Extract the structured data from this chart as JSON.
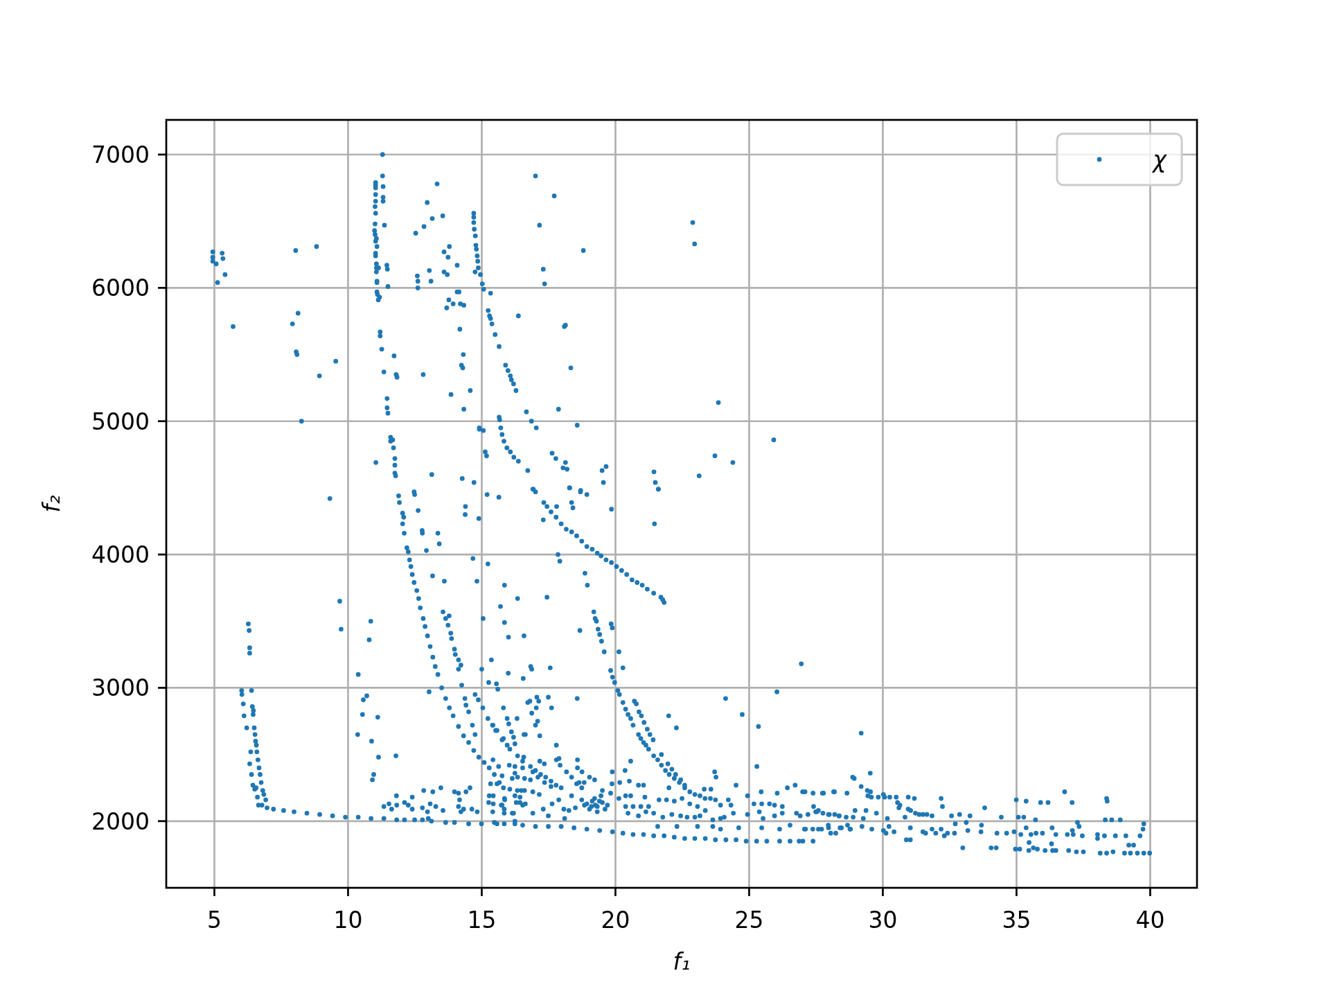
{
  "chart_data": {
    "type": "scatter",
    "xlabel": "f₁",
    "ylabel": "f₂",
    "xlim": [
      3.2,
      41.75
    ],
    "ylim": [
      1500,
      7260
    ],
    "xticks": [
      5,
      10,
      15,
      20,
      25,
      30,
      35,
      40
    ],
    "yticks": [
      2000,
      3000,
      4000,
      5000,
      6000,
      7000
    ],
    "grid": true,
    "legend": "top right",
    "marker": "circle",
    "x": [
      4.94,
      4.94,
      4.94,
      5.07,
      5.29,
      5.32,
      5.4,
      5.12,
      8.04,
      8.82,
      11.29,
      11.29,
      11.03,
      11.03,
      11.03,
      11.31,
      11.31,
      11.31,
      11.36,
      11.03,
      11.03,
      11.01,
      11.03,
      11.01,
      10.99,
      11.01,
      11.06,
      11.03,
      11.08,
      11.03,
      11.03,
      11.06,
      11.06,
      11.14,
      11.06,
      11.08,
      11.08,
      11.49,
      11.08,
      11.1,
      11.18,
      11.13,
      11.45,
      11.47,
      13.33,
      12.96,
      13.15,
      13.54,
      12.84,
      12.53,
      13.79,
      13.59,
      13.74,
      14.08,
      13.04,
      13.59,
      13.71,
      12.59,
      12.61,
      12.61,
      13.1,
      14.7,
      14.7,
      14.7,
      14.72,
      14.76,
      14.78,
      14.8,
      14.83,
      14.85,
      14.87,
      14.95,
      14.75,
      15.02,
      15.07,
      15.33,
      15.24,
      15.29,
      15.33,
      15.38,
      15.5,
      15.65,
      15.89,
      15.98,
      16.07,
      16.11,
      16.19,
      16.28,
      16.37,
      14.08,
      14.15,
      13.77,
      13.93,
      13.69,
      14.2,
      14.33,
      14.18,
      14.31,
      14.24,
      14.29,
      13.85,
      14.57,
      14.33,
      14.91,
      14.91,
      15.06,
      15.13,
      15.18,
      14.27,
      14.71,
      13.13,
      12.47,
      11.2,
      11.2,
      11.26,
      11.72,
      11.34,
      11.8,
      11.83,
      11.46,
      11.46,
      11.49,
      11.59,
      11.67,
      11.59,
      11.7,
      11.75,
      11.75,
      11.75,
      11.78,
      11.04,
      12.81,
      8.13,
      7.92,
      5.7,
      8.06,
      8.09,
      9.54,
      8.93,
      8.26,
      15.65,
      15.67,
      15.71,
      15.76,
      15.83,
      15.94,
      16.07,
      16.2,
      16.37,
      17.01,
      17.71,
      17.16,
      18.8,
      17.3,
      17.35,
      22.89,
      22.96,
      18.13,
      18.09,
      18.33,
      23.85,
      25.92,
      16.67,
      16.86,
      17.04,
      17.87,
      18.57,
      17.63,
      17.77,
      18.13,
      18.04,
      18.19,
      16.72,
      19.5,
      19.65,
      19.55,
      18.28,
      18.7,
      16.93,
      21.44,
      21.49,
      21.6,
      23.13,
      23.72,
      24.39,
      9.32,
      11.89,
      12.49,
      12.62,
      11.92,
      12.04,
      12.08,
      12.04,
      12.1,
      12.2,
      12.25,
      12.77,
      12.78,
      13.36,
      13.41,
      12.93,
      14.39,
      14.38,
      14.89,
      15.2,
      15.64,
      14.67,
      15.23,
      14.82,
      13.16,
      13.6,
      15.85,
      16.34,
      15.7,
      15.05,
      15.85,
      16.0,
      16.58,
      15.36,
      15.0,
      15.99,
      16.55,
      15.26,
      15.55,
      15.6,
      13.03,
      12.3,
      12.35,
      12.4,
      12.47,
      12.57,
      12.64,
      12.7,
      12.81,
      12.88,
      12.97,
      13.07,
      13.17,
      13.26,
      13.36,
      13.5,
      13.65,
      13.79,
      13.93,
      14.13,
      14.32,
      14.51,
      14.7,
      14.89,
      15.09,
      15.28,
      15.47,
      15.66,
      15.81,
      16.05,
      16.33,
      16.6,
      15.76,
      16.14,
      16.6,
      13.55,
      13.65,
      13.74,
      13.84,
      13.87,
      13.98,
      14.01,
      14.13,
      14.22,
      14.13,
      14.25,
      14.37,
      14.41,
      14.51,
      14.65,
      14.75,
      13.78,
      14.75,
      14.87,
      15.04,
      15.23,
      15.42,
      15.57,
      15.76,
      15.95,
      16.24,
      16.34,
      16.53,
      15.81,
      15.95,
      16.01,
      16.32,
      16.11,
      16.19,
      16.58,
      15.42,
      15.63,
      16.03,
      16.24,
      16.53,
      15.57,
      15.33,
      15.28,
      15.43,
      15.26,
      15.43,
      15.76,
      15.85,
      15.41,
      15.84,
      15.84,
      16.19,
      16.24,
      16.43,
      16.53,
      16.29,
      15.57,
      15.84,
      16.24,
      16.53,
      6.27,
      6.3,
      6.32,
      6.32,
      6.02,
      6.03,
      6.39,
      6.08,
      6.42,
      6.46,
      6.45,
      6.11,
      6.21,
      6.49,
      6.52,
      6.54,
      6.57,
      6.36,
      6.59,
      6.32,
      6.63,
      6.67,
      6.39,
      6.71,
      6.44,
      6.51,
      6.75,
      6.56,
      6.81,
      6.85,
      6.61,
      6.92,
      6.65,
      6.78,
      6.97,
      7.21,
      7.59,
      7.98,
      8.46,
      8.94,
      9.42,
      9.9,
      10.38,
      10.86,
      11.34,
      11.82,
      12.11,
      12.49,
      12.78,
      13.12,
      13.65,
      13.98,
      14.51,
      14.99,
      9.69,
      9.74,
      10.85,
      10.79,
      10.38,
      10.7,
      10.57,
      10.54,
      11.11,
      10.36,
      10.88,
      11.14,
      11.79,
      10.96,
      10.91,
      11.34,
      11.53,
      11.82,
      11.81,
      12.11,
      12.4,
      12.4,
      11.63,
      12.25,
      12.83,
      13.17,
      13.47,
      12.78,
      13.07,
      13.28,
      12.97,
      13.55,
      13.98,
      14.13,
      14.17,
      14.13,
      14.22,
      14.32,
      14.41,
      14.56,
      14.63,
      14.83,
      13.0,
      16.91,
      17.01,
      17.32,
      17.44,
      17.59,
      17.78,
      17.97,
      18.16,
      18.36,
      18.55,
      18.74,
      18.93,
      19.13,
      19.32,
      19.46,
      19.65,
      19.85,
      20.04,
      20.23,
      20.42,
      20.62,
      20.81,
      21.0,
      21.19,
      21.43,
      21.7,
      21.77,
      21.82,
      17.3,
      17.8,
      18.29,
      18.36,
      18.41,
      18.69,
      18.93,
      19.85,
      21.61,
      21.46,
      17.85,
      17.92,
      18.86,
      18.95,
      17.44,
      16.83,
      16.87,
      17.56,
      18.67,
      19.19,
      19.24,
      19.29,
      19.35,
      19.41,
      19.48,
      19.58,
      19.82,
      19.89,
      19.97,
      20.09,
      20.15,
      20.28,
      20.38,
      20.47,
      20.57,
      20.66,
      20.86,
      20.95,
      21.05,
      21.14,
      21.24,
      21.43,
      21.58,
      21.72,
      21.87,
      22.01,
      22.2,
      22.39,
      22.59,
      22.78,
      22.97,
      23.16,
      23.35,
      23.55,
      23.74,
      20.71,
      20.78,
      20.88,
      20.97,
      21.07,
      21.19,
      21.29,
      21.41,
      21.72,
      21.96,
      22.11,
      22.25,
      22.44,
      22.59,
      19.84,
      19.88,
      20.13,
      20.28,
      21.99,
      22.28,
      24.12,
      24.74,
      25.35,
      26.04,
      26.95,
      25.29,
      23.71,
      23.76,
      24.51,
      23.32,
      23.57,
      22.0,
      20.57,
      20.36,
      19.88,
      18.57,
      17.61,
      17.49,
      17.06,
      17.13,
      16.8,
      16.72,
      17.04,
      16.87,
      17.09,
      17.01,
      16.63,
      17.17,
      17.79,
      15.52,
      15.4,
      15.81,
      16.05,
      16.82,
      17.01,
      17.2,
      17.39,
      17.59,
      17.78,
      17.97,
      16.91,
      17.1,
      17.35,
      17.59,
      17.79,
      17.93,
      18.17,
      18.36,
      18.55,
      18.74,
      18.83,
      19.03,
      19.22,
      16.34,
      16.82,
      18.74,
      18.93,
      19.13,
      19.32,
      19.51,
      19.51,
      19.61,
      19.03,
      19.32,
      19.22,
      19.46,
      18.84,
      19.7,
      19.25,
      19.4,
      19.1,
      20.13,
      20.38,
      20.66,
      20.95,
      21.24,
      21.63,
      21.91,
      22.2,
      22.49,
      22.78,
      23.07,
      23.36,
      23.93,
      24.22,
      24.32,
      24.41,
      24.94,
      25.18,
      25.47,
      25.76,
      25.95,
      26.24,
      26.43,
      26.72,
      27.0,
      27.39,
      27.78,
      28.16,
      26.05,
      25.45,
      20.47,
      20.86,
      21.14,
      21.43,
      21.77,
      22.11,
      22.44,
      22.68,
      22.97,
      23.16,
      23.64,
      23.93,
      24.07,
      24.94,
      25.38,
      25.52,
      25.95,
      26.24,
      26.77,
      26.91,
      27.2,
      27.49,
      27.59,
      27.97,
      28.36,
      21.58,
      22.3,
      23.07,
      23.64,
      23.93,
      24.61,
      25.47,
      26.14,
      26.53,
      27.11,
      27.59,
      27.97,
      28.45,
      15.47,
      16.24,
      17.01,
      17.49,
      17.97,
      18.45,
      18.93,
      19.41,
      19.89,
      20.28,
      20.66,
      21.05,
      21.43,
      21.82,
      22.2,
      22.59,
      22.97,
      23.36,
      23.74,
      24.13,
      24.51,
      24.89,
      25.28,
      25.66,
      26.14,
      26.53,
      27.01,
      27.39,
      16.14,
      16.43,
      16.63,
      16.91,
      17.3,
      17.49,
      17.63,
      17.88,
      18.07,
      18.26,
      18.36,
      18.5,
      18.64,
      18.58,
      18.58,
      18.75,
      18.1,
      17.15,
      16.91,
      16.48,
      15.86,
      15.73,
      16.57,
      17.17,
      17.34,
      17.89,
      19.87,
      20.16,
      20.52,
      20.86,
      21.05,
      19.82,
      20.38,
      20.57,
      21.1,
      16.24,
      29.19,
      29.53,
      28.87,
      28.93,
      29.19,
      29.42,
      29.54,
      29.44,
      29.57,
      29.83,
      30.02,
      30.07,
      30.26,
      30.5,
      30.55,
      30.64,
      30.6,
      30.95,
      31.18,
      30.95,
      31.04,
      31.22,
      31.36,
      31.5,
      31.65,
      31.84,
      30.83,
      32.18,
      32.23,
      32.57,
      32.87,
      33.26,
      33.81,
      32.71,
      33.12,
      33.69,
      34.43,
      34.99,
      35.36,
      35.9,
      36.18,
      36.8,
      37.08,
      38.37,
      38.39,
      35.07,
      35.27,
      35.71,
      38.32,
      38.56,
      38.88,
      37.28,
      37.34,
      27.07,
      27.38,
      27.71,
      27.96,
      28.05,
      28.24,
      28.4,
      28.77,
      29.22,
      29.59,
      30.02,
      30.12,
      30.23,
      30.42,
      31.03,
      31.5,
      31.6,
      31.84,
      31.98,
      32.18,
      32.3,
      32.42,
      32.68,
      33.18,
      33.67,
      34.27,
      34.63,
      34.91,
      35.16,
      35.36,
      35.54,
      35.73,
      35.97,
      36.33,
      36.47,
      36.9,
      37.09,
      37.12,
      37.46,
      38.03,
      38.03,
      38.29,
      38.7,
      39.09,
      39.62,
      39.73,
      39.76,
      26.87,
      30.88,
      31.03,
      32.99,
      34.05,
      34.24,
      34.96,
      35.12,
      35.46,
      35.63,
      35.78,
      36.07,
      36.31,
      36.35,
      36.47,
      36.95,
      37.24,
      37.5,
      38.13,
      38.37,
      38.61,
      39.04,
      39.2,
      39.38,
      39.26,
      39.52,
      39.76,
      39.98,
      35.47,
      27.41,
      27.53,
      27.76,
      28.0,
      28.2,
      28.37,
      28.63,
      28.96,
      28.89,
      29.27,
      29.37,
      29.76,
      30.17,
      28.68,
      28.79,
      27.09,
      27.74,
      28.19,
      28.66
    ],
    "series": [
      {
        "name": "χ",
        "color": "#1f77b4",
        "values": [
          6270,
          6230,
          6200,
          6180,
          6260,
          6220,
          6100,
          6040,
          6280,
          6310,
          7000,
          6840,
          6790,
          6770,
          6750,
          6760,
          6680,
          6650,
          6470,
          6700,
          6650,
          6610,
          6560,
          6480,
          6430,
          6400,
          6370,
          6350,
          6310,
          6260,
          6240,
          6180,
          6150,
          6150,
          6120,
          6050,
          6040,
          6010,
          5970,
          5950,
          5930,
          5910,
          6170,
          6140,
          6780,
          6640,
          6520,
          6540,
          6460,
          6410,
          6310,
          6270,
          6230,
          6170,
          6130,
          6120,
          6100,
          6090,
          6050,
          6000,
          6050,
          6560,
          6530,
          6490,
          6440,
          6390,
          6320,
          6290,
          6240,
          6200,
          6150,
          6100,
          6120,
          6030,
          5990,
          5960,
          5830,
          5790,
          5770,
          5730,
          5650,
          5560,
          5420,
          5380,
          5340,
          5310,
          5280,
          5230,
          5790,
          5970,
          5970,
          5910,
          5880,
          5850,
          5880,
          5870,
          5690,
          5500,
          5420,
          5400,
          5200,
          5230,
          5090,
          4950,
          4940,
          4930,
          4770,
          4740,
          4570,
          4540,
          4600,
          4470,
          5670,
          5640,
          5540,
          5490,
          5370,
          5350,
          5330,
          5170,
          5100,
          5060,
          4880,
          4860,
          4850,
          4800,
          4720,
          4670,
          4610,
          4590,
          4690,
          5350,
          5810,
          5730,
          5710,
          5520,
          5500,
          5450,
          5340,
          5000,
          5030,
          5010,
          4950,
          4900,
          4850,
          4800,
          4770,
          4730,
          4700,
          6840,
          6690,
          6470,
          6280,
          6140,
          6030,
          6490,
          6330,
          5720,
          5710,
          5400,
          5140,
          4860,
          5070,
          5000,
          4950,
          5090,
          4970,
          4760,
          4720,
          4690,
          4650,
          4640,
          4630,
          4630,
          4660,
          4540,
          4500,
          4480,
          4490,
          4620,
          4540,
          4490,
          4590,
          4740,
          4690,
          4420,
          4440,
          4450,
          4330,
          4390,
          4310,
          4280,
          4230,
          4160,
          4050,
          4020,
          4180,
          4160,
          4160,
          4080,
          4030,
          4360,
          4300,
          4270,
          4450,
          4430,
          3970,
          3930,
          3800,
          3840,
          3800,
          3770,
          3670,
          3610,
          3520,
          3490,
          3380,
          3390,
          3210,
          3140,
          3110,
          3070,
          3040,
          3030,
          2990,
          2970,
          3960,
          3910,
          3850,
          3790,
          3730,
          3670,
          3600,
          3520,
          3460,
          3390,
          3310,
          3230,
          3160,
          3100,
          3000,
          2920,
          2850,
          2790,
          2710,
          2640,
          2590,
          2530,
          2480,
          2440,
          2400,
          2350,
          2290,
          2250,
          2240,
          2230,
          2230,
          2340,
          2320,
          2320,
          3570,
          3520,
          3470,
          3410,
          3370,
          3290,
          3250,
          3210,
          3170,
          3140,
          3020,
          2920,
          2870,
          2820,
          2720,
          2650,
          3540,
          2950,
          2910,
          2850,
          2770,
          2720,
          2680,
          2610,
          2570,
          2580,
          2490,
          2450,
          2850,
          2770,
          2730,
          2770,
          2670,
          2630,
          2650,
          2460,
          2410,
          2420,
          2410,
          2400,
          2280,
          2280,
          2190,
          2190,
          2140,
          2130,
          2120,
          2170,
          2070,
          2090,
          2060,
          2060,
          2190,
          2180,
          2120,
          2140,
          1980,
          1980,
          2000,
          1970,
          3480,
          3430,
          3300,
          3260,
          2980,
          2950,
          2980,
          2880,
          2860,
          2830,
          2800,
          2790,
          2700,
          2700,
          2650,
          2600,
          2570,
          2520,
          2520,
          2430,
          2460,
          2400,
          2350,
          2350,
          2270,
          2240,
          2290,
          2250,
          2230,
          2200,
          2180,
          2160,
          2120,
          2120,
          2100,
          2090,
          2080,
          2070,
          2060,
          2050,
          2040,
          2030,
          2030,
          2020,
          2020,
          2010,
          2010,
          2010,
          2010,
          2000,
          1990,
          1990,
          1980,
          1980,
          3650,
          3440,
          3500,
          3360,
          3100,
          2940,
          2910,
          2800,
          2780,
          2650,
          2600,
          2480,
          2490,
          2350,
          2310,
          2110,
          2130,
          2120,
          2190,
          2140,
          2180,
          2090,
          2090,
          2120,
          2230,
          2220,
          2250,
          2100,
          2130,
          2110,
          2070,
          2080,
          2220,
          2210,
          2160,
          2110,
          2070,
          2090,
          2220,
          2250,
          2090,
          2070,
          2020,
          4490,
          4470,
          4390,
          4360,
          4320,
          4280,
          4230,
          4190,
          4170,
          4140,
          4100,
          4060,
          4040,
          4010,
          3990,
          3960,
          3940,
          3910,
          3880,
          3850,
          3810,
          3790,
          3770,
          3740,
          3710,
          3680,
          3660,
          3640,
          4260,
          4360,
          4500,
          4390,
          4350,
          4470,
          4450,
          4340,
          4490,
          4230,
          4000,
          3950,
          3860,
          3770,
          3680,
          3160,
          3140,
          3150,
          3430,
          3570,
          3520,
          3500,
          3440,
          3400,
          3350,
          3270,
          3130,
          3080,
          3040,
          2980,
          2950,
          2890,
          2840,
          2800,
          2770,
          2720,
          2650,
          2620,
          2590,
          2570,
          2540,
          2490,
          2460,
          2420,
          2380,
          2350,
          2320,
          2290,
          2250,
          2220,
          2200,
          2190,
          2170,
          2170,
          2160,
          2900,
          2880,
          2820,
          2790,
          2740,
          2690,
          2650,
          2610,
          2500,
          2430,
          2390,
          2350,
          2310,
          2270,
          3480,
          3450,
          3270,
          3150,
          2790,
          2700,
          2920,
          2800,
          2710,
          2970,
          3180,
          2410,
          2370,
          2330,
          2270,
          2240,
          2240,
          2250,
          2450,
          2380,
          2370,
          2920,
          2850,
          2930,
          2930,
          2900,
          2900,
          2890,
          2850,
          2810,
          2750,
          2720,
          2650,
          2640,
          2570,
          2680,
          2720,
          2620,
          2540,
          2410,
          2380,
          2350,
          2330,
          2300,
          2270,
          2250,
          2370,
          2330,
          2290,
          2260,
          2460,
          2420,
          2370,
          2330,
          2280,
          2250,
          2290,
          2330,
          2310,
          2330,
          2310,
          2160,
          2130,
          2150,
          2110,
          2140,
          2230,
          2090,
          2090,
          2070,
          2170,
          2190,
          2120,
          2120,
          2120,
          2150,
          2110,
          2170,
          2110,
          2110,
          2110,
          2110,
          2160,
          2160,
          2150,
          2170,
          2130,
          2110,
          2080,
          2120,
          2160,
          2120,
          2060,
          2190,
          2130,
          2130,
          2130,
          2120,
          2110,
          2250,
          2270,
          2220,
          2210,
          2210,
          2220,
          2210,
          2220,
          2060,
          2040,
          2070,
          2060,
          2030,
          2050,
          2040,
          2030,
          2030,
          2040,
          2010,
          2020,
          2030,
          2050,
          2070,
          2020,
          2040,
          2060,
          2060,
          2040,
          2050,
          2070,
          2080,
          2050,
          2040,
          1960,
          1960,
          1960,
          1960,
          1940,
          1950,
          1950,
          1940,
          1970,
          1940,
          1940,
          1950,
          1950,
          1990,
          1980,
          1960,
          1960,
          1960,
          1950,
          1940,
          1930,
          1920,
          1910,
          1900,
          1900,
          1890,
          1890,
          1880,
          1870,
          1870,
          1870,
          1860,
          1860,
          1860,
          1850,
          1850,
          1850,
          1850,
          1850,
          1850,
          1850,
          2060,
          2140,
          2130,
          2060,
          2090,
          2040,
          2130,
          2160,
          2090,
          2080,
          2190,
          2100,
          2290,
          2460,
          2400,
          2370,
          2020,
          2200,
          2220,
          2230,
          2160,
          2120,
          2480,
          2450,
          2430,
          2470,
          2280,
          2290,
          2300,
          2270,
          2270,
          2210,
          2190,
          2190,
          2180,
          2360,
          2660,
          2360,
          2330,
          2320,
          2260,
          2230,
          2220,
          2190,
          2180,
          2180,
          2200,
          2180,
          2180,
          2180,
          2140,
          2120,
          2100,
          2180,
          2170,
          2090,
          2080,
          2060,
          2050,
          2050,
          2050,
          2040,
          2030,
          2170,
          2110,
          2040,
          2050,
          2040,
          2100,
          1980,
          1990,
          1970,
          2030,
          2160,
          2150,
          2140,
          2140,
          2220,
          2140,
          2170,
          2150,
          2030,
          2030,
          2010,
          2010,
          2010,
          2010,
          1990,
          1960,
          1940,
          1940,
          1940,
          1970,
          1910,
          1910,
          1950,
          1940,
          1960,
          1940,
          1930,
          1910,
          1960,
          1920,
          1950,
          1920,
          1910,
          1940,
          1910,
          1940,
          1890,
          1910,
          1910,
          1930,
          1920,
          1910,
          1910,
          1920,
          1900,
          1950,
          1900,
          1910,
          1910,
          1950,
          1900,
          1900,
          1930,
          1900,
          1890,
          1900,
          1870,
          1890,
          1890,
          1890,
          1890,
          1940,
          1980,
          1850,
          1860,
          1860,
          1800,
          1800,
          1800,
          1790,
          1790,
          1780,
          1800,
          1790,
          1780,
          1830,
          1780,
          1780,
          1780,
          1770,
          1770,
          1760,
          1760,
          1770,
          1760,
          1820,
          1820,
          1760,
          1760,
          1760,
          1760,
          1840,
          2110,
          2070,
          2060,
          2050,
          2050,
          2040,
          2030,
          2080,
          2030,
          2020,
          2080,
          2060,
          2020,
          1970,
          1940,
          2220,
          2210,
          2220,
          2210
        ]
      }
    ]
  }
}
